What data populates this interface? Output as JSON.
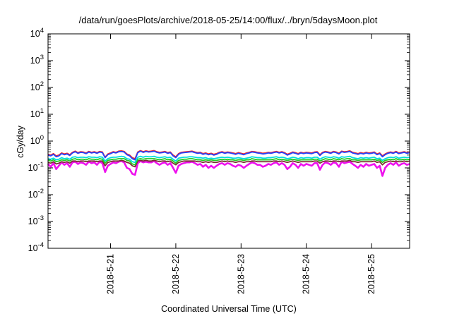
{
  "chart_data": {
    "type": "line",
    "title": "/data/run/goesPlots/archive/2018-05-25/14:00/flux/../bryn/5daysMoon.plot",
    "xlabel": "Coordinated Universal Time (UTC)",
    "ylabel": "cGy/day",
    "yscale": "log",
    "ylim": [
      0.0001,
      10000
    ],
    "xlim": [
      "2018-05-20 01:00",
      "2018-05-25 14:00"
    ],
    "grid": false,
    "legend": "none",
    "y_ticks": [
      {
        "value": 0.0001,
        "base": "10",
        "exp": "-4"
      },
      {
        "value": 0.001,
        "base": "10",
        "exp": "-3"
      },
      {
        "value": 0.01,
        "base": "10",
        "exp": "-2"
      },
      {
        "value": 0.1,
        "base": "10",
        "exp": "-1"
      },
      {
        "value": 1,
        "base": "10",
        "exp": "0"
      },
      {
        "value": 10,
        "base": "10",
        "exp": "1"
      },
      {
        "value": 100,
        "base": "10",
        "exp": "2"
      },
      {
        "value": 1000,
        "base": "10",
        "exp": "3"
      },
      {
        "value": 10000,
        "base": "10",
        "exp": "4"
      }
    ],
    "x_ticks": [
      {
        "value": "2018-05-21 00:00",
        "label": "2018-5-21"
      },
      {
        "value": "2018-05-22 00:00",
        "label": "2018-5-22"
      },
      {
        "value": "2018-05-23 00:00",
        "label": "2018-5-23"
      },
      {
        "value": "2018-05-24 00:00",
        "label": "2018-5-24"
      },
      {
        "value": "2018-05-25 00:00",
        "label": "2018-5-25"
      }
    ],
    "x": [
      "2018-05-20 01:00",
      "2018-05-20 02:00",
      "2018-05-20 03:00",
      "2018-05-20 04:00",
      "2018-05-20 05:00",
      "2018-05-20 06:00",
      "2018-05-20 07:00",
      "2018-05-20 08:00",
      "2018-05-20 09:00",
      "2018-05-20 10:00",
      "2018-05-20 11:00",
      "2018-05-20 12:00",
      "2018-05-20 13:00",
      "2018-05-20 14:00",
      "2018-05-20 15:00",
      "2018-05-20 16:00",
      "2018-05-20 17:00",
      "2018-05-20 18:00",
      "2018-05-20 19:00",
      "2018-05-20 20:00",
      "2018-05-20 21:00",
      "2018-05-20 22:00",
      "2018-05-20 23:00",
      "2018-05-21 00:00",
      "2018-05-21 01:00",
      "2018-05-21 02:00",
      "2018-05-21 03:00",
      "2018-05-21 04:00",
      "2018-05-21 05:00",
      "2018-05-21 06:00",
      "2018-05-21 07:00",
      "2018-05-21 08:00",
      "2018-05-21 09:00",
      "2018-05-21 10:00",
      "2018-05-21 11:00",
      "2018-05-21 12:00",
      "2018-05-21 13:00",
      "2018-05-21 14:00",
      "2018-05-21 15:00",
      "2018-05-21 16:00",
      "2018-05-21 17:00",
      "2018-05-21 18:00",
      "2018-05-21 19:00",
      "2018-05-21 20:00",
      "2018-05-21 21:00",
      "2018-05-21 22:00",
      "2018-05-21 23:00",
      "2018-05-22 00:00",
      "2018-05-22 01:00",
      "2018-05-22 02:00",
      "2018-05-22 03:00",
      "2018-05-22 04:00",
      "2018-05-22 05:00",
      "2018-05-22 06:00",
      "2018-05-22 07:00",
      "2018-05-22 08:00",
      "2018-05-22 09:00",
      "2018-05-22 10:00",
      "2018-05-22 11:00",
      "2018-05-22 12:00",
      "2018-05-22 13:00",
      "2018-05-22 14:00",
      "2018-05-22 15:00",
      "2018-05-22 16:00",
      "2018-05-22 17:00",
      "2018-05-22 18:00",
      "2018-05-22 19:00",
      "2018-05-22 20:00",
      "2018-05-22 21:00",
      "2018-05-22 22:00",
      "2018-05-22 23:00",
      "2018-05-23 00:00",
      "2018-05-23 01:00",
      "2018-05-23 02:00",
      "2018-05-23 03:00",
      "2018-05-23 04:00",
      "2018-05-23 05:00",
      "2018-05-23 06:00",
      "2018-05-23 07:00",
      "2018-05-23 08:00",
      "2018-05-23 09:00",
      "2018-05-23 10:00",
      "2018-05-23 11:00",
      "2018-05-23 12:00",
      "2018-05-23 13:00",
      "2018-05-23 14:00",
      "2018-05-23 15:00",
      "2018-05-23 16:00",
      "2018-05-23 17:00",
      "2018-05-23 18:00",
      "2018-05-23 19:00",
      "2018-05-23 20:00",
      "2018-05-23 21:00",
      "2018-05-23 22:00",
      "2018-05-23 23:00",
      "2018-05-24 00:00",
      "2018-05-24 01:00",
      "2018-05-24 02:00",
      "2018-05-24 03:00",
      "2018-05-24 04:00",
      "2018-05-24 05:00",
      "2018-05-24 06:00",
      "2018-05-24 07:00",
      "2018-05-24 08:00",
      "2018-05-24 09:00",
      "2018-05-24 10:00",
      "2018-05-24 11:00",
      "2018-05-24 12:00",
      "2018-05-24 13:00",
      "2018-05-24 14:00",
      "2018-05-24 15:00",
      "2018-05-24 16:00",
      "2018-05-24 17:00",
      "2018-05-24 18:00",
      "2018-05-24 19:00",
      "2018-05-24 20:00",
      "2018-05-24 21:00",
      "2018-05-24 22:00",
      "2018-05-24 23:00",
      "2018-05-25 00:00",
      "2018-05-25 01:00",
      "2018-05-25 02:00",
      "2018-05-25 03:00",
      "2018-05-25 04:00",
      "2018-05-25 05:00",
      "2018-05-25 06:00",
      "2018-05-25 07:00",
      "2018-05-25 08:00",
      "2018-05-25 09:00",
      "2018-05-25 10:00",
      "2018-05-25 11:00",
      "2018-05-25 12:00",
      "2018-05-25 13:00",
      "2018-05-25 14:00"
    ],
    "series": [
      {
        "color": "#ff2222",
        "values": [
          0.32,
          0.3,
          0.34,
          0.28,
          0.3,
          0.36,
          0.33,
          0.35,
          0.31,
          0.38,
          0.42,
          0.37,
          0.4,
          0.39,
          0.36,
          0.41,
          0.38,
          0.4,
          0.37,
          0.41,
          0.39,
          0.25,
          0.33,
          0.36,
          0.4,
          0.38,
          0.42,
          0.43,
          0.41,
          0.33,
          0.3,
          0.24,
          0.22,
          0.39,
          0.44,
          0.4,
          0.43,
          0.41,
          0.42,
          0.44,
          0.4,
          0.38,
          0.39,
          0.41,
          0.37,
          0.39,
          0.3,
          0.26,
          0.34,
          0.38,
          0.39,
          0.4,
          0.41,
          0.42,
          0.39,
          0.37,
          0.38,
          0.34,
          0.36,
          0.33,
          0.35,
          0.32,
          0.34,
          0.38,
          0.4,
          0.37,
          0.39,
          0.38,
          0.36,
          0.34,
          0.37,
          0.35,
          0.33,
          0.36,
          0.38,
          0.41,
          0.4,
          0.38,
          0.37,
          0.35,
          0.36,
          0.38,
          0.37,
          0.39,
          0.41,
          0.38,
          0.4,
          0.37,
          0.32,
          0.35,
          0.39,
          0.37,
          0.34,
          0.38,
          0.36,
          0.38,
          0.37,
          0.36,
          0.39,
          0.4,
          0.31,
          0.38,
          0.41,
          0.39,
          0.37,
          0.41,
          0.39,
          0.35,
          0.42,
          0.4,
          0.41,
          0.43,
          0.38,
          0.36,
          0.34,
          0.37,
          0.35,
          0.38,
          0.36,
          0.37,
          0.39,
          0.33,
          0.36,
          0.28,
          0.33,
          0.37,
          0.39,
          0.37,
          0.41,
          0.36,
          0.38,
          0.4,
          0.37,
          0.39
        ]
      },
      {
        "color": "#2244ff",
        "values": [
          0.3,
          0.28,
          0.32,
          0.26,
          0.28,
          0.34,
          0.31,
          0.33,
          0.29,
          0.36,
          0.4,
          0.35,
          0.38,
          0.37,
          0.34,
          0.39,
          0.36,
          0.38,
          0.35,
          0.39,
          0.37,
          0.24,
          0.31,
          0.34,
          0.38,
          0.36,
          0.4,
          0.41,
          0.39,
          0.31,
          0.28,
          0.22,
          0.2,
          0.37,
          0.42,
          0.38,
          0.41,
          0.39,
          0.4,
          0.42,
          0.38,
          0.36,
          0.37,
          0.39,
          0.35,
          0.37,
          0.28,
          0.24,
          0.32,
          0.36,
          0.37,
          0.38,
          0.39,
          0.4,
          0.37,
          0.35,
          0.36,
          0.32,
          0.34,
          0.31,
          0.33,
          0.3,
          0.32,
          0.36,
          0.38,
          0.35,
          0.37,
          0.36,
          0.34,
          0.32,
          0.35,
          0.33,
          0.31,
          0.34,
          0.36,
          0.39,
          0.38,
          0.36,
          0.35,
          0.33,
          0.34,
          0.36,
          0.35,
          0.37,
          0.39,
          0.36,
          0.38,
          0.35,
          0.3,
          0.33,
          0.37,
          0.35,
          0.32,
          0.36,
          0.34,
          0.36,
          0.35,
          0.34,
          0.37,
          0.38,
          0.29,
          0.36,
          0.39,
          0.37,
          0.35,
          0.39,
          0.37,
          0.33,
          0.4,
          0.38,
          0.39,
          0.41,
          0.36,
          0.34,
          0.32,
          0.35,
          0.33,
          0.36,
          0.34,
          0.35,
          0.37,
          0.31,
          0.34,
          0.26,
          0.31,
          0.35,
          0.37,
          0.35,
          0.39,
          0.34,
          0.36,
          0.38,
          0.35,
          0.37
        ]
      },
      {
        "color": "#00dddd",
        "values": [
          0.22,
          0.21,
          0.23,
          0.2,
          0.21,
          0.24,
          0.22,
          0.23,
          0.21,
          0.25,
          0.26,
          0.24,
          0.25,
          0.25,
          0.24,
          0.26,
          0.25,
          0.25,
          0.24,
          0.26,
          0.25,
          0.18,
          0.22,
          0.24,
          0.25,
          0.25,
          0.26,
          0.27,
          0.26,
          0.22,
          0.21,
          0.17,
          0.16,
          0.25,
          0.27,
          0.25,
          0.27,
          0.26,
          0.26,
          0.27,
          0.25,
          0.24,
          0.25,
          0.26,
          0.24,
          0.25,
          0.21,
          0.18,
          0.23,
          0.24,
          0.25,
          0.25,
          0.26,
          0.26,
          0.25,
          0.24,
          0.24,
          0.23,
          0.24,
          0.22,
          0.23,
          0.22,
          0.23,
          0.24,
          0.25,
          0.24,
          0.25,
          0.24,
          0.23,
          0.23,
          0.24,
          0.23,
          0.22,
          0.23,
          0.24,
          0.26,
          0.25,
          0.24,
          0.24,
          0.23,
          0.23,
          0.24,
          0.24,
          0.25,
          0.26,
          0.24,
          0.25,
          0.24,
          0.22,
          0.23,
          0.25,
          0.24,
          0.22,
          0.24,
          0.23,
          0.24,
          0.24,
          0.23,
          0.25,
          0.25,
          0.21,
          0.24,
          0.26,
          0.25,
          0.24,
          0.26,
          0.25,
          0.23,
          0.26,
          0.25,
          0.26,
          0.27,
          0.24,
          0.23,
          0.22,
          0.24,
          0.23,
          0.24,
          0.23,
          0.24,
          0.25,
          0.22,
          0.23,
          0.19,
          0.22,
          0.24,
          0.25,
          0.24,
          0.26,
          0.23,
          0.24,
          0.25,
          0.24,
          0.25
        ]
      },
      {
        "color": "#22cc22",
        "values": [
          0.19,
          0.18,
          0.2,
          0.17,
          0.18,
          0.2,
          0.19,
          0.2,
          0.18,
          0.21,
          0.22,
          0.2,
          0.21,
          0.21,
          0.2,
          0.22,
          0.21,
          0.21,
          0.2,
          0.22,
          0.21,
          0.15,
          0.19,
          0.2,
          0.21,
          0.21,
          0.22,
          0.22,
          0.22,
          0.19,
          0.18,
          0.14,
          0.13,
          0.21,
          0.22,
          0.21,
          0.22,
          0.22,
          0.22,
          0.22,
          0.21,
          0.2,
          0.21,
          0.22,
          0.2,
          0.21,
          0.18,
          0.15,
          0.19,
          0.2,
          0.21,
          0.21,
          0.22,
          0.22,
          0.21,
          0.2,
          0.2,
          0.19,
          0.2,
          0.19,
          0.2,
          0.19,
          0.19,
          0.2,
          0.21,
          0.2,
          0.21,
          0.2,
          0.2,
          0.19,
          0.2,
          0.2,
          0.19,
          0.2,
          0.2,
          0.22,
          0.21,
          0.2,
          0.2,
          0.2,
          0.2,
          0.2,
          0.2,
          0.21,
          0.22,
          0.2,
          0.21,
          0.2,
          0.19,
          0.2,
          0.21,
          0.2,
          0.19,
          0.2,
          0.2,
          0.2,
          0.2,
          0.2,
          0.21,
          0.21,
          0.18,
          0.2,
          0.22,
          0.21,
          0.2,
          0.22,
          0.21,
          0.2,
          0.22,
          0.21,
          0.22,
          0.22,
          0.2,
          0.2,
          0.19,
          0.2,
          0.2,
          0.2,
          0.2,
          0.2,
          0.21,
          0.19,
          0.2,
          0.16,
          0.19,
          0.2,
          0.21,
          0.2,
          0.22,
          0.2,
          0.2,
          0.21,
          0.2,
          0.21
        ]
      },
      {
        "color": "#7a3030",
        "values": [
          0.16,
          0.15,
          0.17,
          0.14,
          0.15,
          0.17,
          0.16,
          0.17,
          0.15,
          0.18,
          0.18,
          0.17,
          0.18,
          0.18,
          0.17,
          0.18,
          0.18,
          0.18,
          0.17,
          0.18,
          0.18,
          0.12,
          0.16,
          0.17,
          0.18,
          0.18,
          0.18,
          0.19,
          0.18,
          0.16,
          0.15,
          0.12,
          0.11,
          0.18,
          0.19,
          0.18,
          0.19,
          0.18,
          0.18,
          0.19,
          0.18,
          0.17,
          0.18,
          0.18,
          0.17,
          0.18,
          0.15,
          0.13,
          0.16,
          0.17,
          0.18,
          0.18,
          0.18,
          0.18,
          0.18,
          0.17,
          0.17,
          0.16,
          0.17,
          0.16,
          0.17,
          0.16,
          0.16,
          0.17,
          0.18,
          0.17,
          0.18,
          0.17,
          0.17,
          0.16,
          0.17,
          0.17,
          0.16,
          0.17,
          0.17,
          0.18,
          0.18,
          0.17,
          0.17,
          0.17,
          0.17,
          0.17,
          0.17,
          0.18,
          0.18,
          0.17,
          0.18,
          0.17,
          0.16,
          0.17,
          0.18,
          0.17,
          0.16,
          0.17,
          0.17,
          0.17,
          0.17,
          0.17,
          0.18,
          0.18,
          0.15,
          0.17,
          0.18,
          0.18,
          0.17,
          0.18,
          0.18,
          0.17,
          0.18,
          0.18,
          0.18,
          0.19,
          0.17,
          0.17,
          0.16,
          0.17,
          0.17,
          0.17,
          0.17,
          0.17,
          0.18,
          0.16,
          0.17,
          0.13,
          0.16,
          0.17,
          0.18,
          0.17,
          0.18,
          0.17,
          0.17,
          0.18,
          0.17,
          0.18
        ]
      },
      {
        "color": "#ee11ee",
        "values": [
          0.14,
          0.11,
          0.15,
          0.09,
          0.12,
          0.16,
          0.13,
          0.15,
          0.11,
          0.16,
          0.17,
          0.14,
          0.16,
          0.15,
          0.13,
          0.17,
          0.15,
          0.16,
          0.13,
          0.17,
          0.15,
          0.07,
          0.12,
          0.14,
          0.16,
          0.15,
          0.17,
          0.18,
          0.16,
          0.1,
          0.09,
          0.06,
          0.055,
          0.15,
          0.18,
          0.16,
          0.17,
          0.16,
          0.16,
          0.18,
          0.15,
          0.13,
          0.15,
          0.16,
          0.13,
          0.15,
          0.1,
          0.065,
          0.12,
          0.14,
          0.15,
          0.16,
          0.16,
          0.17,
          0.15,
          0.13,
          0.14,
          0.11,
          0.13,
          0.1,
          0.12,
          0.1,
          0.12,
          0.14,
          0.15,
          0.13,
          0.15,
          0.14,
          0.12,
          0.11,
          0.13,
          0.12,
          0.1,
          0.12,
          0.14,
          0.16,
          0.15,
          0.13,
          0.13,
          0.11,
          0.12,
          0.14,
          0.13,
          0.15,
          0.16,
          0.13,
          0.15,
          0.13,
          0.09,
          0.11,
          0.15,
          0.13,
          0.1,
          0.14,
          0.12,
          0.14,
          0.13,
          0.12,
          0.15,
          0.15,
          0.085,
          0.13,
          0.16,
          0.15,
          0.13,
          0.16,
          0.15,
          0.11,
          0.17,
          0.15,
          0.16,
          0.17,
          0.14,
          0.12,
          0.1,
          0.13,
          0.11,
          0.14,
          0.12,
          0.13,
          0.14,
          0.1,
          0.12,
          0.05,
          0.1,
          0.13,
          0.15,
          0.13,
          0.16,
          0.12,
          0.14,
          0.15,
          0.13,
          0.14
        ]
      }
    ]
  }
}
